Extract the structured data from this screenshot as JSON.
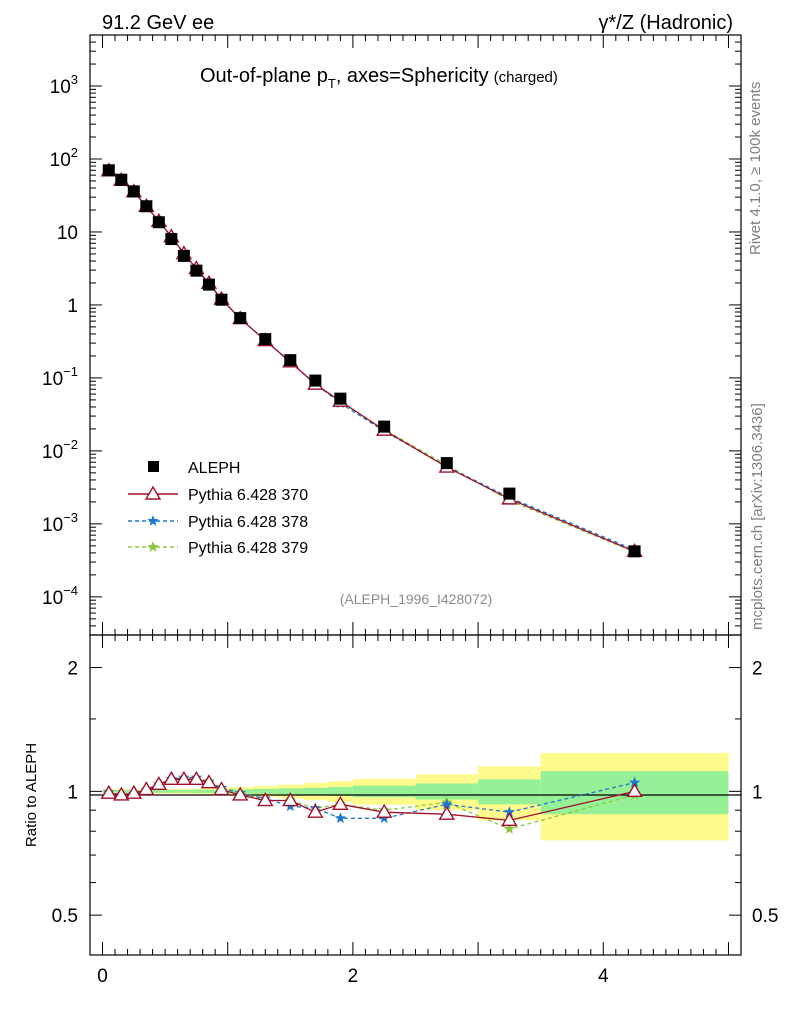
{
  "header": {
    "left": "91.2 GeV ee",
    "right": "γ*/Z (Hadronic)"
  },
  "side_labels": {
    "rivet": "Rivet 4.1.0, ≥ 100k events",
    "mcplots": "mcplots.cern.ch [arXiv:1306.3436]"
  },
  "colors": {
    "data": "#000000",
    "p370": "#a0102a",
    "p378": "#1f77d0",
    "p379": "#8cc83c",
    "band_yellow": "#fffa8c",
    "band_green": "#96f096"
  },
  "chart_data": [
    {
      "type": "scatter",
      "panel": "main",
      "title": "Out-of-plane p_T, axes=Sphericity",
      "title_parts": {
        "main": "Out-of-plane p",
        "sub": "T",
        "rest": ", axes=Sphericity",
        "suffix": "(charged)"
      },
      "watermark": "(ALEPH_1996_I428072)",
      "yscale": "log",
      "xlim": [
        -0.1,
        5.1
      ],
      "ylim": [
        3e-05,
        5000
      ],
      "y_ticks": [
        {
          "value": 0.0001,
          "base": "10",
          "exp": "−4"
        },
        {
          "value": 0.001,
          "base": "10",
          "exp": "−3"
        },
        {
          "value": 0.01,
          "base": "10",
          "exp": "−2"
        },
        {
          "value": 0.1,
          "base": "10",
          "exp": "−1"
        },
        {
          "value": 1,
          "base": "1",
          "exp": ""
        },
        {
          "value": 10,
          "base": "10",
          "exp": ""
        },
        {
          "value": 100,
          "base": "10",
          "exp": "2"
        },
        {
          "value": 1000,
          "base": "10",
          "exp": "3"
        }
      ],
      "legend_position": "bottom-left",
      "x": [
        0.05,
        0.15,
        0.25,
        0.35,
        0.45,
        0.55,
        0.65,
        0.75,
        0.85,
        0.95,
        1.1,
        1.3,
        1.5,
        1.7,
        1.9,
        2.25,
        2.75,
        3.25,
        4.25
      ],
      "series": [
        {
          "name": "ALEPH",
          "marker": "square",
          "color_key": "data",
          "values": [
            70,
            52,
            36,
            22.5,
            13.6,
            8.0,
            4.7,
            2.95,
            1.9,
            1.18,
            0.66,
            0.34,
            0.175,
            0.092,
            0.052,
            0.0215,
            0.0068,
            0.0026,
            0.00042
          ]
        },
        {
          "name": "Pythia 6.428 370",
          "marker": "triangle",
          "line": "solid",
          "color_key": "p370",
          "values": [
            69,
            51,
            35.5,
            22.5,
            14.0,
            8.6,
            5.05,
            3.15,
            1.98,
            1.2,
            0.65,
            0.325,
            0.166,
            0.082,
            0.048,
            0.0192,
            0.006,
            0.0022,
            0.00042
          ]
        },
        {
          "name": "Pythia 6.428 378",
          "marker": "star",
          "line": "dashed",
          "color_key": "p378",
          "values": [
            69.5,
            51,
            35.5,
            22.6,
            14.1,
            8.6,
            5.05,
            3.2,
            1.98,
            1.2,
            0.65,
            0.33,
            0.163,
            0.083,
            0.045,
            0.0186,
            0.0061,
            0.0023,
            0.00044
          ]
        },
        {
          "name": "Pythia 6.428 379",
          "marker": "star",
          "line": "dashed",
          "color_key": "p379",
          "values": [
            69.5,
            51,
            35.5,
            22.6,
            14.0,
            8.5,
            5.0,
            3.15,
            1.98,
            1.2,
            0.66,
            0.325,
            0.168,
            0.083,
            0.048,
            0.0196,
            0.0064,
            0.0021,
            0.00041
          ]
        }
      ]
    },
    {
      "type": "scatter",
      "panel": "ratio",
      "ylabel": "Ratio to ALEPH",
      "yscale": "log",
      "xlim": [
        -0.1,
        5.1
      ],
      "ylim": [
        0.4,
        2.4
      ],
      "y_ticks": [
        0.5,
        1,
        2
      ],
      "x_ticks": [
        0,
        2,
        4
      ],
      "band_bins": [
        {
          "x0": 0.0,
          "x1": 0.1,
          "green": 0.008,
          "yellow": 0.012
        },
        {
          "x0": 0.1,
          "x1": 0.2,
          "green": 0.008,
          "yellow": 0.012
        },
        {
          "x0": 0.2,
          "x1": 0.3,
          "green": 0.008,
          "yellow": 0.012
        },
        {
          "x0": 0.3,
          "x1": 0.4,
          "green": 0.008,
          "yellow": 0.012
        },
        {
          "x0": 0.4,
          "x1": 0.5,
          "green": 0.008,
          "yellow": 0.013
        },
        {
          "x0": 0.5,
          "x1": 0.6,
          "green": 0.008,
          "yellow": 0.013
        },
        {
          "x0": 0.6,
          "x1": 0.7,
          "green": 0.008,
          "yellow": 0.014
        },
        {
          "x0": 0.7,
          "x1": 0.8,
          "green": 0.009,
          "yellow": 0.015
        },
        {
          "x0": 0.8,
          "x1": 0.9,
          "green": 0.009,
          "yellow": 0.016
        },
        {
          "x0": 0.9,
          "x1": 1.0,
          "green": 0.01,
          "yellow": 0.018
        },
        {
          "x0": 1.0,
          "x1": 1.2,
          "green": 0.012,
          "yellow": 0.024
        },
        {
          "x0": 1.2,
          "x1": 1.4,
          "green": 0.014,
          "yellow": 0.03
        },
        {
          "x0": 1.4,
          "x1": 1.6,
          "green": 0.017,
          "yellow": 0.038
        },
        {
          "x0": 1.6,
          "x1": 1.8,
          "green": 0.02,
          "yellow": 0.048
        },
        {
          "x0": 1.8,
          "x1": 2.0,
          "green": 0.025,
          "yellow": 0.058
        },
        {
          "x0": 2.0,
          "x1": 2.5,
          "green": 0.032,
          "yellow": 0.072
        },
        {
          "x0": 2.5,
          "x1": 3.0,
          "green": 0.045,
          "yellow": 0.1
        },
        {
          "x0": 3.0,
          "x1": 3.5,
          "green": 0.07,
          "yellow": 0.15
        },
        {
          "x0": 3.5,
          "x1": 5.0,
          "green": 0.12,
          "yellow": 0.24
        }
      ],
      "series": [
        {
          "name": "Pythia 6.428 370",
          "marker": "triangle",
          "line": "solid",
          "color_key": "p370",
          "values": [
            0.99,
            0.98,
            0.99,
            1.01,
            1.04,
            1.07,
            1.07,
            1.07,
            1.05,
            1.01,
            0.98,
            0.95,
            0.95,
            0.89,
            0.93,
            0.89,
            0.88,
            0.85,
            1.0
          ]
        },
        {
          "name": "Pythia 6.428 378",
          "marker": "star",
          "line": "dashed",
          "color_key": "p378",
          "values": [
            0.995,
            0.98,
            0.985,
            1.005,
            1.04,
            1.07,
            1.08,
            1.08,
            1.05,
            1.02,
            0.99,
            0.96,
            0.92,
            0.91,
            0.86,
            0.86,
            0.93,
            0.89,
            1.05
          ]
        },
        {
          "name": "Pythia 6.428 379",
          "marker": "star",
          "line": "dashed",
          "color_key": "p379",
          "values": [
            0.995,
            0.98,
            0.985,
            1.01,
            1.04,
            1.07,
            1.07,
            1.07,
            1.06,
            1.02,
            0.99,
            0.95,
            0.95,
            0.91,
            0.93,
            0.9,
            0.94,
            0.81,
            0.98
          ]
        }
      ]
    }
  ]
}
